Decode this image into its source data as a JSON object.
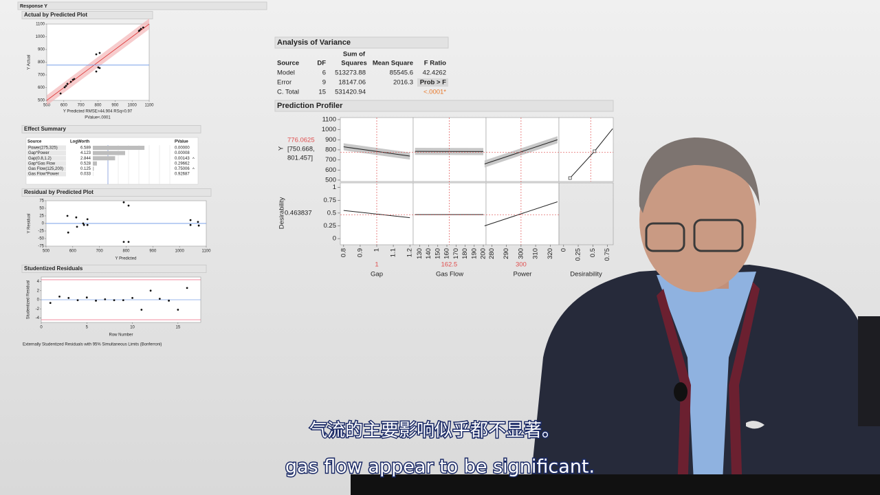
{
  "header": "Response Y",
  "actual_by_predicted": {
    "type": "scatter",
    "title": "Actual by Predicted Plot",
    "x_label": "Y Predicted RMSE=44.904 RSq=0.97",
    "x_label2": "PValue<.0001",
    "y_label": "Y Actual",
    "xlim": [
      500,
      1100
    ],
    "ylim": [
      500,
      1100
    ],
    "xticks": [
      500,
      600,
      700,
      800,
      900,
      1000,
      1100
    ],
    "yticks": [
      500,
      600,
      700,
      800,
      900,
      1000,
      1100
    ],
    "mean": 778,
    "x": [
      581,
      605,
      613,
      621,
      641,
      653,
      661,
      790,
      802,
      810,
      790,
      810,
      1040,
      1052,
      1065,
      1044
    ],
    "values": [
      554,
      603,
      614,
      630,
      646,
      662,
      668,
      727,
      759,
      754,
      862,
      873,
      1046,
      1062,
      1073,
      1051
    ]
  },
  "effect_summary": {
    "title": "Effect Summary",
    "headers": [
      "Source",
      "LogWorth",
      "PValue"
    ],
    "rows": [
      {
        "source": "Power(275,325)",
        "logworth": 6.589,
        "pvalue": "0.00000"
      },
      {
        "source": "Gap*Power",
        "logworth": 4.123,
        "pvalue": "0.00008"
      },
      {
        "source": "Gap(0.8,1.2)",
        "logworth": 2.844,
        "pvalue": "0.00143",
        "flag": "^"
      },
      {
        "source": "Gap*Gas Flow",
        "logworth": 0.528,
        "pvalue": "0.29662"
      },
      {
        "source": "Gas Flow(125,200)",
        "logworth": 0.125,
        "pvalue": "0.75006",
        "flag": "^"
      },
      {
        "source": "Gas Flow*Power",
        "logworth": 0.033,
        "pvalue": "0.92687"
      }
    ]
  },
  "residual_by_predicted": {
    "type": "scatter",
    "title": "Residual by Predicted Plot",
    "x_label": "Y Predicted",
    "y_label": "Y Residual",
    "xlim": [
      500,
      1100
    ],
    "ylim": [
      -75,
      75
    ],
    "xticks": [
      500,
      600,
      700,
      800,
      900,
      1000,
      1100
    ],
    "yticks": [
      -75,
      -50,
      -25,
      0,
      25,
      50,
      75
    ],
    "x": [
      580,
      583,
      613,
      616,
      639,
      642,
      655,
      655,
      791,
      809,
      791,
      809,
      1041,
      1041,
      1069,
      1072
    ],
    "values": [
      25,
      -30,
      20,
      -11,
      0,
      -5,
      14,
      -5,
      70,
      59,
      -61,
      -61,
      11,
      -5,
      5,
      -7
    ]
  },
  "studentized_residuals": {
    "type": "scatter",
    "title": "Studentized Residuals",
    "x_label": "Row Number",
    "y_label": "Studentized Residual",
    "footnote": "Externally Studentized Residuals with 95% Simultaneous Limits (Bonferroni)",
    "xlim": [
      0,
      17.5
    ],
    "ylim": [
      -5,
      5
    ],
    "xticks": [
      0,
      5,
      10,
      15
    ],
    "yticks": [
      -4,
      -2,
      0,
      2,
      4
    ],
    "limits": [
      -4.4,
      4.4
    ],
    "x": [
      1,
      2,
      3,
      4,
      5,
      6,
      7,
      8,
      9,
      10,
      11,
      12,
      13,
      14,
      15,
      16
    ],
    "values": [
      -0.7,
      0.7,
      0.4,
      -0.1,
      0.5,
      -0.2,
      0.1,
      -0.1,
      -0.1,
      0.4,
      -2.2,
      2.0,
      0.2,
      -0.2,
      -2.2,
      2.6
    ]
  },
  "anova": {
    "title": "Analysis of Variance",
    "headers": [
      "Source",
      "DF",
      [
        "Sum of",
        "Squares"
      ],
      "Mean Square",
      "F Ratio"
    ],
    "rows": [
      [
        "Model",
        "6",
        "513273.88",
        "85545.6",
        "42.4262"
      ],
      [
        "Error",
        "9",
        "18147.06",
        "2016.3",
        "Prob > F"
      ],
      [
        "C. Total",
        "15",
        "531420.94",
        "",
        "<.0001*"
      ]
    ]
  },
  "profiler": {
    "title": "Prediction Profiler",
    "y_label": "Y",
    "prediction": 776.0625,
    "interval": [
      "[750.668,",
      "801.457]"
    ],
    "desirability_label": "Desirability",
    "desirability": 0.463837,
    "ylim": [
      486,
      1120
    ],
    "yticks": [
      500,
      600,
      700,
      800,
      900,
      1000,
      1100
    ],
    "desirability_ylim": [
      -0.12,
      1.09
    ],
    "desirability_yticks": [
      0,
      0.25,
      0.5,
      0.75,
      1
    ],
    "factors": [
      {
        "name": "Gap",
        "current": 1,
        "xlim": [
          0.78,
          1.22
        ],
        "xticks": [
          0.8,
          0.9,
          1,
          1.1,
          1.2
        ],
        "x": [
          0.8,
          1.2
        ],
        "values": [
          830,
          738
        ],
        "desirability_values": [
          0.55,
          0.41
        ]
      },
      {
        "name": "Gas Flow",
        "current": 162.5,
        "xlim": [
          123,
          203
        ],
        "xticks": [
          130,
          140,
          150,
          160,
          170,
          180,
          190,
          200
        ],
        "x": [
          125,
          200
        ],
        "values": [
          785,
          783
        ],
        "desirability_values": [
          0.47,
          0.47
        ]
      },
      {
        "name": "Power",
        "current": 300,
        "xlim": [
          276,
          326
        ],
        "xticks": [
          280,
          290,
          300,
          310,
          320
        ],
        "x": [
          275,
          325
        ],
        "values": [
          660,
          900
        ],
        "desirability_values": [
          0.25,
          0.72
        ]
      }
    ],
    "desirability_function": {
      "name": "Desirability",
      "xlim": [
        -0.08,
        0.85
      ],
      "xticks": [
        0,
        0.25,
        0.5,
        0.75
      ],
      "x": [
        0.11,
        0.53,
        0.84
      ],
      "values": [
        520,
        786,
        1010
      ]
    }
  },
  "subtitles": [
    "气流的主要影响似乎都不显著。",
    "gas flow appear to be significant."
  ]
}
